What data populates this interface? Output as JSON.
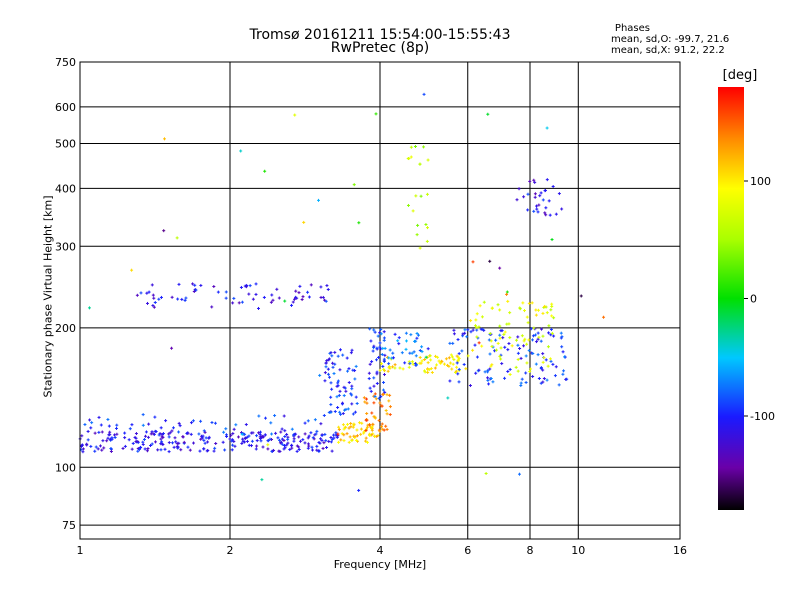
{
  "header": {
    "title_line1": "Tromsø 20161211 15:54:00-15:55:43",
    "title_line2": "RwPretec (8p)"
  },
  "phases": {
    "title": "Phases",
    "o_line": "mean, sd,O: -99.7, 21.6",
    "x_line": "mean, sd,X:  91.2, 22.2"
  },
  "colorbar": {
    "unit": "[deg]",
    "ticks": [
      "100",
      "0",
      "-100"
    ],
    "tick_values": [
      100,
      0,
      -100
    ],
    "range": [
      -180,
      180
    ]
  },
  "chart_data": {
    "type": "scatter",
    "xlabel": "Frequency [MHz]",
    "ylabel": "Stationary phase Virtual Height [km]",
    "xscale": "log",
    "yscale": "log",
    "xlim": [
      1,
      16
    ],
    "ylim": [
      70,
      750
    ],
    "x_ticks": [
      1,
      2,
      4,
      6,
      8,
      10,
      16
    ],
    "x_tick_labels": [
      "1",
      "2",
      "4",
      "6",
      "8",
      "10",
      "16"
    ],
    "y_ticks": [
      75,
      100,
      200,
      300,
      400,
      500,
      600,
      750
    ],
    "y_tick_labels": [
      "75",
      "100",
      "200",
      "300",
      "400",
      "500",
      "600",
      "750"
    ],
    "grid": true,
    "clusters": [
      {
        "x_range": [
          1.0,
          3.3
        ],
        "y_range": [
          108,
          120
        ],
        "phase": -110,
        "count": 260
      },
      {
        "x_range": [
          1.0,
          3.2
        ],
        "y_range": [
          115,
          130
        ],
        "phase": -95,
        "count": 60
      },
      {
        "x_range": [
          1.3,
          3.3
        ],
        "y_range": [
          220,
          250
        ],
        "phase": -110,
        "count": 70
      },
      {
        "x_range": [
          3.1,
          3.6
        ],
        "y_range": [
          130,
          180
        ],
        "phase": -95,
        "count": 70
      },
      {
        "x_range": [
          3.3,
          4.0
        ],
        "y_range": [
          113,
          125
        ],
        "phase": 110,
        "count": 60
      },
      {
        "x_range": [
          3.7,
          4.2
        ],
        "y_range": [
          120,
          145
        ],
        "phase": 140,
        "count": 40
      },
      {
        "x_range": [
          3.8,
          4.1
        ],
        "y_range": [
          140,
          200
        ],
        "phase": -95,
        "count": 40
      },
      {
        "x_range": [
          4.0,
          6.0
        ],
        "y_range": [
          160,
          175
        ],
        "phase": 100,
        "count": 70
      },
      {
        "x_range": [
          4.0,
          5.0
        ],
        "y_range": [
          165,
          195
        ],
        "phase": -80,
        "count": 40
      },
      {
        "x_range": [
          5.5,
          9.5
        ],
        "y_range": [
          150,
          200
        ],
        "phase": -95,
        "count": 120
      },
      {
        "x_range": [
          6.0,
          9.0
        ],
        "y_range": [
          160,
          230
        ],
        "phase": 80,
        "count": 80
      },
      {
        "x_range": [
          4.5,
          5.0
        ],
        "y_range": [
          290,
          500
        ],
        "phase": 60,
        "count": 20
      },
      {
        "x_range": [
          7.5,
          9.3
        ],
        "y_range": [
          350,
          420
        ],
        "phase": -110,
        "count": 30
      },
      {
        "x_range": [
          1.0,
          12.0
        ],
        "y_range": [
          80,
          650
        ],
        "phase": 0,
        "count": 40
      }
    ]
  }
}
